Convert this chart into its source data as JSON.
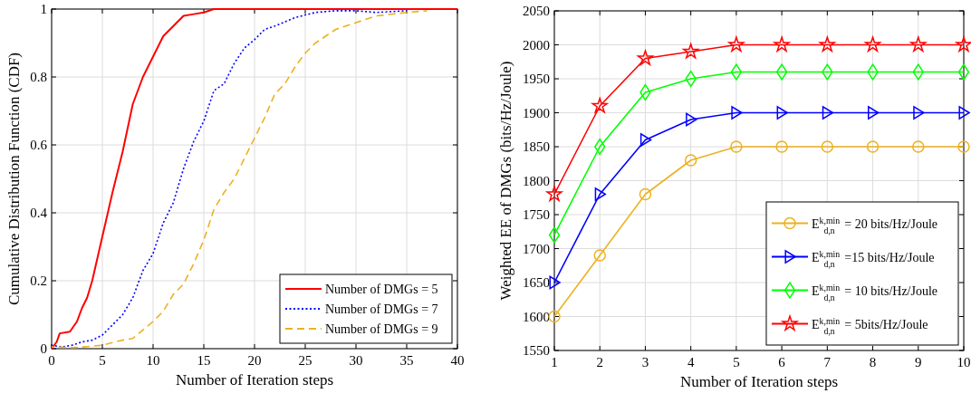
{
  "chart_data": [
    {
      "type": "line",
      "xlabel": "Number of Iteration steps",
      "ylabel": "Cumulative Distribution Function (CDF)",
      "xlim": [
        0,
        40
      ],
      "ylim": [
        0,
        1
      ],
      "xticks": [
        0,
        5,
        10,
        15,
        20,
        25,
        30,
        35,
        40
      ],
      "yticks": [
        0,
        0.2,
        0.4,
        0.6,
        0.8,
        1
      ],
      "grid": true,
      "legend": "bottom right",
      "series": [
        {
          "name": "Number of DMGs = 5",
          "color": "#ff0000",
          "line_style": "solid",
          "x": [
            0,
            0.5,
            0.8,
            1.8,
            2.5,
            3,
            3.5,
            4,
            5,
            6,
            7,
            8,
            9,
            10,
            11,
            12,
            13,
            14,
            15,
            16,
            40
          ],
          "values": [
            0,
            0.02,
            0.045,
            0.05,
            0.08,
            0.12,
            0.15,
            0.2,
            0.33,
            0.46,
            0.58,
            0.72,
            0.8,
            0.86,
            0.92,
            0.95,
            0.98,
            0.985,
            0.99,
            1,
            1
          ]
        },
        {
          "name": "Number of DMGs = 7",
          "color": "#0000ff",
          "line_style": "dotted",
          "x": [
            0,
            1,
            2,
            3,
            4,
            5,
            6,
            7,
            8,
            9,
            10,
            11,
            12,
            13,
            14,
            15,
            16,
            17,
            18,
            19,
            20,
            21,
            22,
            24,
            26,
            28,
            30,
            32,
            35
          ],
          "values": [
            0.01,
            0.005,
            0.01,
            0.02,
            0.025,
            0.04,
            0.07,
            0.1,
            0.15,
            0.23,
            0.28,
            0.37,
            0.43,
            0.53,
            0.61,
            0.67,
            0.76,
            0.78,
            0.84,
            0.885,
            0.91,
            0.94,
            0.95,
            0.975,
            0.99,
            0.995,
            0.995,
            0.99,
            0.995
          ]
        },
        {
          "name": "Number of DMGs = 9",
          "color": "#edb120",
          "line_style": "dashed",
          "x": [
            0,
            2,
            3,
            5,
            6,
            7,
            8,
            9,
            10,
            11,
            12,
            13,
            14,
            15,
            16,
            17,
            18,
            19,
            20,
            21,
            22,
            23,
            24,
            25,
            26,
            27,
            28,
            30,
            32,
            35,
            37
          ],
          "values": [
            0.005,
            0.003,
            0.005,
            0.01,
            0.018,
            0.025,
            0.03,
            0.055,
            0.08,
            0.11,
            0.16,
            0.19,
            0.25,
            0.32,
            0.41,
            0.46,
            0.5,
            0.56,
            0.62,
            0.68,
            0.75,
            0.78,
            0.83,
            0.87,
            0.9,
            0.92,
            0.94,
            0.96,
            0.98,
            0.99,
            0.995
          ]
        }
      ]
    },
    {
      "type": "line",
      "xlabel": "Number of Iteration steps",
      "ylabel": "Weighted EE of DMGs (bits/Hz/Joule)",
      "x": [
        1,
        2,
        3,
        4,
        5,
        6,
        7,
        8,
        9,
        10
      ],
      "xlim": [
        1,
        10
      ],
      "ylim": [
        1550,
        2050
      ],
      "xticks": [
        1,
        2,
        3,
        4,
        5,
        6,
        7,
        8,
        9,
        10
      ],
      "yticks": [
        1550,
        1600,
        1650,
        1700,
        1750,
        1800,
        1850,
        1900,
        1950,
        2000,
        2050
      ],
      "grid": true,
      "legend": "bottom right",
      "series": [
        {
          "name": "E$^{k,min}$$_{d,n}$ = 20 bits/Hz/Joule",
          "color": "#edb120",
          "marker": "circle",
          "values": [
            1600,
            1690,
            1780,
            1830,
            1850,
            1850,
            1850,
            1850,
            1850,
            1850
          ]
        },
        {
          "name": "E$^{k,min}$$_{d,n}$ =15 bits/Hz/Joule",
          "color": "#0000ff",
          "marker": "triangle",
          "values": [
            1650,
            1780,
            1860,
            1890,
            1900,
            1900,
            1900,
            1900,
            1900,
            1900
          ]
        },
        {
          "name": "E$^{k,min}$$_{d,n}$ = 10 bits/Hz/Joule",
          "color": "#00ff00",
          "marker": "diamond",
          "values": [
            1720,
            1850,
            1930,
            1950,
            1960,
            1960,
            1960,
            1960,
            1960,
            1960
          ]
        },
        {
          "name": "E$^{k,min}$$_{d,n}$ = 5bits/Hz/Joule",
          "color": "#ff0000",
          "marker": "star",
          "values": [
            1780,
            1910,
            1980,
            1990,
            2000,
            2000,
            2000,
            2000,
            2000,
            2000
          ]
        }
      ]
    }
  ]
}
